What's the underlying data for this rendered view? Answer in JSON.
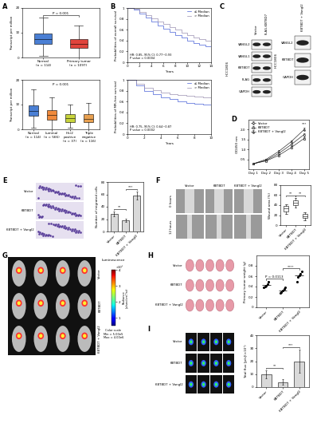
{
  "chart_data": [
    {
      "panel": "A",
      "type": "box",
      "ylabel": "Transcript per million",
      "categories": [
        "Normal\n(n = 114)",
        "Primary tumor\n(n = 1097)"
      ],
      "boxes": [
        {
          "med": 7.5,
          "q1": 5.5,
          "q3": 9.8,
          "whislo": 0.5,
          "whishi": 16
        },
        {
          "med": 5.6,
          "q1": 3.8,
          "q3": 7.5,
          "whislo": 0,
          "whishi": 13
        }
      ],
      "colors": [
        "#4a7fd4",
        "#e0443c"
      ],
      "ylim": [
        0,
        20
      ],
      "yticks": [
        0,
        10,
        20
      ],
      "annotations": [
        "P = 0.001"
      ]
    },
    {
      "panel": "A",
      "type": "box",
      "ylabel": "Transcript per million",
      "categories": [
        "Normal\n(n = 114)",
        "Luminal\n(n = 566)",
        "Her2\npositive\n(n = 37)",
        "Triple\nnegative\n(n = 116)"
      ],
      "boxes": [
        {
          "med": 7.5,
          "q1": 5.5,
          "q3": 9.8,
          "whislo": 0.5,
          "whishi": 16
        },
        {
          "med": 5.8,
          "q1": 4,
          "q3": 7.8,
          "whislo": 0,
          "whishi": 13
        },
        {
          "med": 4.5,
          "q1": 3,
          "q3": 6,
          "whislo": 0.5,
          "whishi": 10
        },
        {
          "med": 4.2,
          "q1": 2.8,
          "q3": 6,
          "whislo": 0,
          "whishi": 10.5
        }
      ],
      "colors": [
        "#4a7fd4",
        "#f08a3c",
        "#c8d43c",
        "#e8a050"
      ],
      "ylim": [
        0,
        20
      ],
      "yticks": [
        0,
        10,
        20
      ],
      "annotations": [
        "P = 0.001"
      ]
    },
    {
      "panel": "B",
      "type": "line",
      "ylabel": "Probabilities of overall survival",
      "xlabel": "Years",
      "xlim": [
        0,
        14
      ],
      "xticks": [
        0,
        2,
        4,
        6,
        8,
        10,
        12,
        14
      ],
      "ylim": [
        0,
        1
      ],
      "yticks": [
        0,
        0.2,
        0.4,
        0.6,
        0.8,
        1
      ],
      "legend": "upper right",
      "line_style": "steps",
      "series": [
        {
          "name": "≤ Median",
          "color": "#4a62d8",
          "x": [
            0,
            1,
            2,
            3,
            4,
            5,
            6,
            7,
            8,
            9,
            10,
            11,
            12,
            13,
            14
          ],
          "values": [
            1,
            0.97,
            0.9,
            0.82,
            0.75,
            0.68,
            0.62,
            0.56,
            0.5,
            0.45,
            0.4,
            0.36,
            0.32,
            0.3,
            0.28
          ]
        },
        {
          "name": "> Median",
          "color": "#9a8fb0",
          "x": [
            0,
            1,
            2,
            3,
            4,
            5,
            6,
            7,
            8,
            9,
            10,
            11,
            12,
            13,
            14
          ],
          "values": [
            1,
            0.98,
            0.93,
            0.87,
            0.81,
            0.75,
            0.7,
            0.65,
            0.6,
            0.55,
            0.5,
            0.46,
            0.42,
            0.4,
            0.38
          ]
        }
      ],
      "annotations": [
        "HR: 0.85, 95% CI: 0.77~0.93\nP value = 0.0004"
      ]
    },
    {
      "panel": "B",
      "type": "line",
      "ylabel": "Probabilities of MR-free survival",
      "xlabel": "Years",
      "xlim": [
        0,
        10
      ],
      "xticks": [
        0,
        2,
        4,
        6,
        8,
        10
      ],
      "ylim": [
        0,
        1
      ],
      "yticks": [
        0,
        0.2,
        0.4,
        0.6,
        0.8,
        1
      ],
      "legend": "upper right",
      "line_style": "steps",
      "series": [
        {
          "name": "≤ Median",
          "color": "#4a62d8",
          "x": [
            0,
            1,
            2,
            3,
            4,
            5,
            6,
            7,
            8,
            9,
            10
          ],
          "values": [
            1,
            0.9,
            0.8,
            0.73,
            0.68,
            0.64,
            0.61,
            0.58,
            0.56,
            0.55,
            0.54
          ]
        },
        {
          "name": "> Median",
          "color": "#9a8fb0",
          "x": [
            0,
            1,
            2,
            3,
            4,
            5,
            6,
            7,
            8,
            9,
            10
          ],
          "values": [
            1,
            0.93,
            0.86,
            0.81,
            0.77,
            0.74,
            0.72,
            0.7,
            0.69,
            0.68,
            0.67
          ]
        }
      ],
      "annotations": [
        "HR: 0.75, 95% CI: 0.64~0.87\nP value = 0.0002"
      ]
    },
    {
      "panel": "C",
      "type": "blot",
      "cell_line": "HCC1806",
      "lanes": [
        "Vector",
        "FLAG-KBTBD7"
      ],
      "bands": [
        "VANGL2",
        "VANGL1",
        "KBTBD7",
        "FLAG",
        "GAPDH"
      ]
    },
    {
      "panel": "C",
      "type": "blot",
      "cell_line": "HCC1806",
      "lanes": [
        "KBTBD7 + Vangl2"
      ],
      "bands": [
        "VANGL2",
        "KBTBD7",
        "GAPDH"
      ]
    },
    {
      "panel": "D",
      "type": "line",
      "ylabel": "OD450 nm",
      "categories": [
        "Day 1",
        "Day 2",
        "Day 3",
        "Day 4",
        "Day 5"
      ],
      "ylim": [
        0,
        2.5
      ],
      "yticks": [
        0.5,
        {
          "value": 1,
          "label": "1.0"
        },
        1.5,
        {
          "value": 2,
          "label": "2.0"
        }
      ],
      "legend": "upper left",
      "line_style": "solid",
      "series": [
        {
          "name": "Vector",
          "color": "#000000",
          "marker": "circle",
          "values": [
            0.28,
            0.45,
            0.8,
            1.25,
            1.75
          ],
          "errors": [
            0.02,
            0.03,
            0.04,
            0.06,
            0.08
          ]
        },
        {
          "name": "KBTBD7",
          "color": "#000000",
          "marker": "square",
          "values": [
            0.28,
            0.42,
            0.7,
            1.1,
            1.55
          ],
          "errors": [
            0.02,
            0.03,
            0.04,
            0.05,
            0.07
          ]
        },
        {
          "name": "KBTBD7 + Vangl2",
          "color": "#000000",
          "marker": "triangle",
          "values": [
            0.28,
            0.5,
            0.9,
            1.4,
            2.0
          ],
          "errors": [
            0.02,
            0.03,
            0.05,
            0.06,
            0.08
          ]
        }
      ],
      "annotations": [
        "***"
      ]
    },
    {
      "panel": "E",
      "type": "image",
      "rows": [
        "Vector",
        "KBTBD7",
        "KBTBD7 + Vangl2"
      ]
    },
    {
      "panel": "E",
      "type": "bar",
      "ylabel": "Number of migrated cells",
      "categories": [
        "Vector",
        "KBTBD7",
        "KBTBD7 + Vangl2"
      ],
      "values": [
        28,
        18,
        58
      ],
      "errors": [
        4,
        3,
        7
      ],
      "color": "#d9d9d9",
      "ylim": [
        0,
        80
      ],
      "yticks": [
        0,
        20,
        40,
        60,
        80
      ],
      "annotations": [
        "**",
        "***"
      ]
    },
    {
      "panel": "F",
      "type": "image",
      "columns": [
        "Vector",
        "KBTBD7",
        "KBTBD7 + Vangl2"
      ],
      "rows": [
        "0 hours",
        "12 hours"
      ]
    },
    {
      "panel": "F",
      "type": "box",
      "ylabel": "Wound area (%)",
      "categories": [
        "Vector",
        "KBTBD7",
        "KBTBD7 + Vangl2"
      ],
      "boxes": [
        {
          "med": 33,
          "q1": 28,
          "q3": 38,
          "whislo": 22,
          "whishi": 42
        },
        {
          "med": 45,
          "q1": 40,
          "q3": 50,
          "whislo": 35,
          "whishi": 55
        },
        {
          "med": 18,
          "q1": 14,
          "q3": 22,
          "whislo": 10,
          "whishi": 26
        }
      ],
      "color": "#ffffff",
      "ylim": [
        0,
        80
      ],
      "yticks": [
        0,
        20,
        40,
        60,
        80
      ],
      "annotations": [
        "**",
        "**"
      ]
    },
    {
      "panel": "G",
      "type": "image",
      "rows": [
        "Vector",
        "KBTBD7",
        "KBTBD7 + Vangl2"
      ],
      "colorbar_title": "Luminescence",
      "colorbar_label": "Radiance\n(p/sec/cm²/sr)",
      "colorbar_range": [
        0.5,
        4.0
      ],
      "colorbar_ticks": [
        1,
        2,
        3,
        4
      ],
      "colorbar_unit": "×10⁶",
      "annotations": [
        "Color scale\nMin = 5.00e5\nMax = 4.00e6"
      ]
    },
    {
      "panel": "H",
      "type": "image",
      "rows": [
        "Vector",
        "KBTBD7",
        "KBTBD7 + Vangl2"
      ]
    },
    {
      "panel": "H",
      "type": "scatter",
      "ylabel": "Primary tumor weight (g)",
      "categories": [
        "Vector",
        "KBTBD7",
        "KBTBD7 + Vangl2"
      ],
      "values": [
        [
          0.38,
          0.4,
          0.42,
          0.45,
          0.5
        ],
        [
          0.28,
          0.3,
          0.32,
          0.35,
          0.38
        ],
        [
          0.5,
          0.58,
          0.62,
          0.65,
          0.7
        ]
      ],
      "color": "#000000",
      "ylim": [
        0,
        1.0
      ],
      "yticks": [
        0,
        0.2,
        0.4,
        0.6,
        0.8
      ],
      "annotations": [
        "P = 0.0113",
        "****"
      ]
    },
    {
      "panel": "I",
      "type": "image",
      "rows": [
        "Vector",
        "KBTBD7",
        "KBTBD7 + Vangl2"
      ]
    },
    {
      "panel": "I",
      "type": "bar",
      "ylabel": "Total flux [p/s](×10⁷)",
      "categories": [
        "Vector",
        "KBTBD7",
        "KBTBD7 + Vangl2"
      ],
      "values": [
        10,
        4,
        20
      ],
      "errors": [
        3,
        2,
        9
      ],
      "color": "#d9d9d9",
      "ylim": [
        0,
        40
      ],
      "yticks": [
        0,
        10,
        20,
        30,
        40
      ],
      "annotations": [
        "**",
        "***"
      ]
    }
  ]
}
